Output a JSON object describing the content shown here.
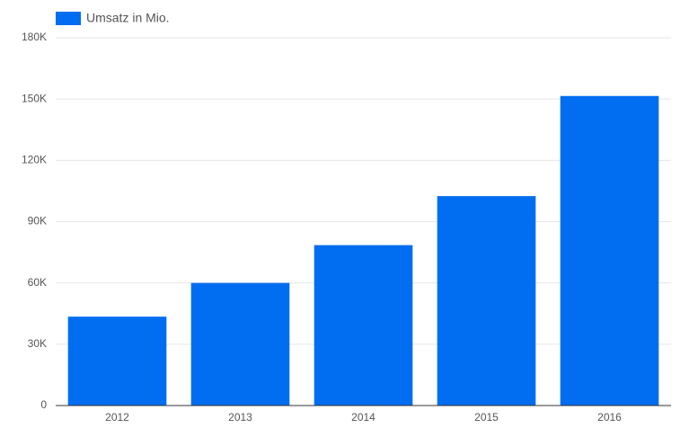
{
  "chart_data": {
    "type": "bar",
    "legend": "Umsatz in Mio.",
    "categories": [
      "2012",
      "2013",
      "2014",
      "2015",
      "2016"
    ],
    "values": [
      43500,
      60000,
      78500,
      102500,
      151500
    ],
    "color": "#016df0",
    "ylim": [
      0,
      180000
    ],
    "yticks": [
      0,
      {
        "value": 30000,
        "label": "30K"
      },
      {
        "value": 60000,
        "label": "60K"
      },
      {
        "value": 90000,
        "label": "90K"
      },
      {
        "value": 120000,
        "label": "120K"
      },
      {
        "value": 150000,
        "label": "150K"
      },
      {
        "value": 180000,
        "label": "180K"
      }
    ],
    "grid": true,
    "legend_position": "top-left"
  }
}
